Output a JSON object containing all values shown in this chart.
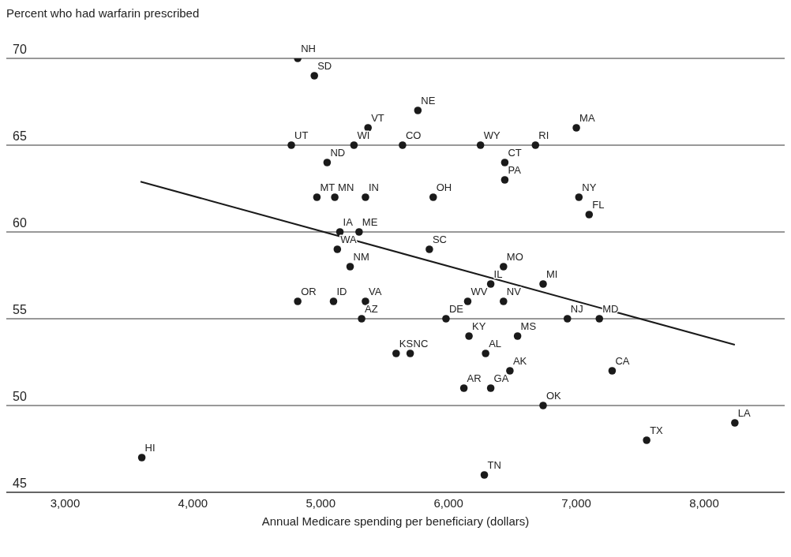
{
  "chart_data": {
    "type": "scatter",
    "title": "Percent who had warfarin prescribed",
    "xlabel": "Annual Medicare spending per beneficiary (dollars)",
    "xlim": [
      2540,
      8630
    ],
    "ylim": [
      45,
      70
    ],
    "xticks": [
      {
        "value": 3000,
        "label": "3,000"
      },
      {
        "value": 4000,
        "label": "4,000"
      },
      {
        "value": 5000,
        "label": "5,000"
      },
      {
        "value": 6000,
        "label": "6,000"
      },
      {
        "value": 7000,
        "label": "7,000"
      },
      {
        "value": 8000,
        "label": "8,000"
      }
    ],
    "yticks": [
      45,
      50,
      55,
      60,
      65,
      70
    ],
    "grid": "y",
    "series": [
      {
        "color": "#1a1a1a",
        "marker": "circle",
        "x": [
          4820,
          4950,
          5760,
          5370,
          4770,
          5260,
          5640,
          5050,
          4970,
          5110,
          5350,
          5880,
          5150,
          5300,
          5130,
          5850,
          5230,
          4820,
          5100,
          5350,
          7000,
          6250,
          6680,
          6440,
          6440,
          7020,
          7100,
          6430,
          6330,
          6740,
          6150,
          6430,
          5980,
          6930,
          7180,
          5320,
          5590,
          5700,
          6160,
          6290,
          6120,
          6330,
          3600,
          6280,
          6540,
          6480,
          7280,
          6740,
          8240,
          7550
        ],
        "values": [
          70,
          69,
          67,
          66,
          65,
          65,
          65,
          64,
          62,
          62,
          62,
          62,
          60,
          60,
          59,
          59,
          58,
          56,
          56,
          56,
          66,
          65,
          65,
          64,
          63,
          62,
          61,
          58,
          57,
          57,
          56,
          56,
          55,
          55,
          55,
          55,
          53,
          53,
          54,
          53,
          51,
          51,
          47,
          46,
          54,
          52,
          52,
          50,
          49,
          48
        ]
      },
      {
        "type": "line",
        "color": "#1a1a1a",
        "marker": "none",
        "x": [
          3590,
          8240
        ],
        "values": [
          62.9,
          53.5
        ]
      }
    ],
    "annotations": [
      {
        "text": "NH",
        "x": 4820,
        "y": 70
      },
      {
        "text": "SD",
        "x": 4950,
        "y": 69
      },
      {
        "text": "NE",
        "x": 5760,
        "y": 67
      },
      {
        "text": "VT",
        "x": 5370,
        "y": 66
      },
      {
        "text": "UT",
        "x": 4770,
        "y": 65
      },
      {
        "text": "WI",
        "x": 5260,
        "y": 65
      },
      {
        "text": "CO",
        "x": 5640,
        "y": 65
      },
      {
        "text": "ND",
        "x": 5050,
        "y": 64
      },
      {
        "text": "MT",
        "x": 4970,
        "y": 62
      },
      {
        "text": "MN",
        "x": 5110,
        "y": 62
      },
      {
        "text": "IN",
        "x": 5350,
        "y": 62
      },
      {
        "text": "OH",
        "x": 5880,
        "y": 62
      },
      {
        "text": "IA",
        "x": 5150,
        "y": 60
      },
      {
        "text": "ME",
        "x": 5300,
        "y": 60
      },
      {
        "text": "WA",
        "x": 5130,
        "y": 59
      },
      {
        "text": "SC",
        "x": 5850,
        "y": 59
      },
      {
        "text": "NM",
        "x": 5230,
        "y": 58
      },
      {
        "text": "OR",
        "x": 4820,
        "y": 56
      },
      {
        "text": "ID",
        "x": 5100,
        "y": 56
      },
      {
        "text": "VA",
        "x": 5350,
        "y": 56
      },
      {
        "text": "MA",
        "x": 7000,
        "y": 66
      },
      {
        "text": "WY",
        "x": 6250,
        "y": 65
      },
      {
        "text": "RI",
        "x": 6680,
        "y": 65
      },
      {
        "text": "CT",
        "x": 6440,
        "y": 64
      },
      {
        "text": "PA",
        "x": 6440,
        "y": 63
      },
      {
        "text": "NY",
        "x": 7020,
        "y": 62
      },
      {
        "text": "FL",
        "x": 7100,
        "y": 61
      },
      {
        "text": "MO",
        "x": 6430,
        "y": 58
      },
      {
        "text": "IL",
        "x": 6330,
        "y": 57
      },
      {
        "text": "MI",
        "x": 6740,
        "y": 57
      },
      {
        "text": "WV",
        "x": 6150,
        "y": 56
      },
      {
        "text": "NV",
        "x": 6430,
        "y": 56
      },
      {
        "text": "DE",
        "x": 5980,
        "y": 55
      },
      {
        "text": "NJ",
        "x": 6930,
        "y": 55
      },
      {
        "text": "MD",
        "x": 7180,
        "y": 55
      },
      {
        "text": "AZ",
        "x": 5320,
        "y": 55
      },
      {
        "text": "KS",
        "x": 5590,
        "y": 53
      },
      {
        "text": "NC",
        "x": 5700,
        "y": 53
      },
      {
        "text": "KY",
        "x": 6160,
        "y": 54
      },
      {
        "text": "AL",
        "x": 6290,
        "y": 53
      },
      {
        "text": "AR",
        "x": 6120,
        "y": 51
      },
      {
        "text": "GA",
        "x": 6330,
        "y": 51
      },
      {
        "text": "HI",
        "x": 3600,
        "y": 47
      },
      {
        "text": "TN",
        "x": 6280,
        "y": 46
      },
      {
        "text": "MS",
        "x": 6540,
        "y": 54
      },
      {
        "text": "AK",
        "x": 6480,
        "y": 52
      },
      {
        "text": "CA",
        "x": 7280,
        "y": 52
      },
      {
        "text": "OK",
        "x": 6740,
        "y": 50
      },
      {
        "text": "LA",
        "x": 8240,
        "y": 49
      },
      {
        "text": "TX",
        "x": 7550,
        "y": 48
      }
    ]
  }
}
